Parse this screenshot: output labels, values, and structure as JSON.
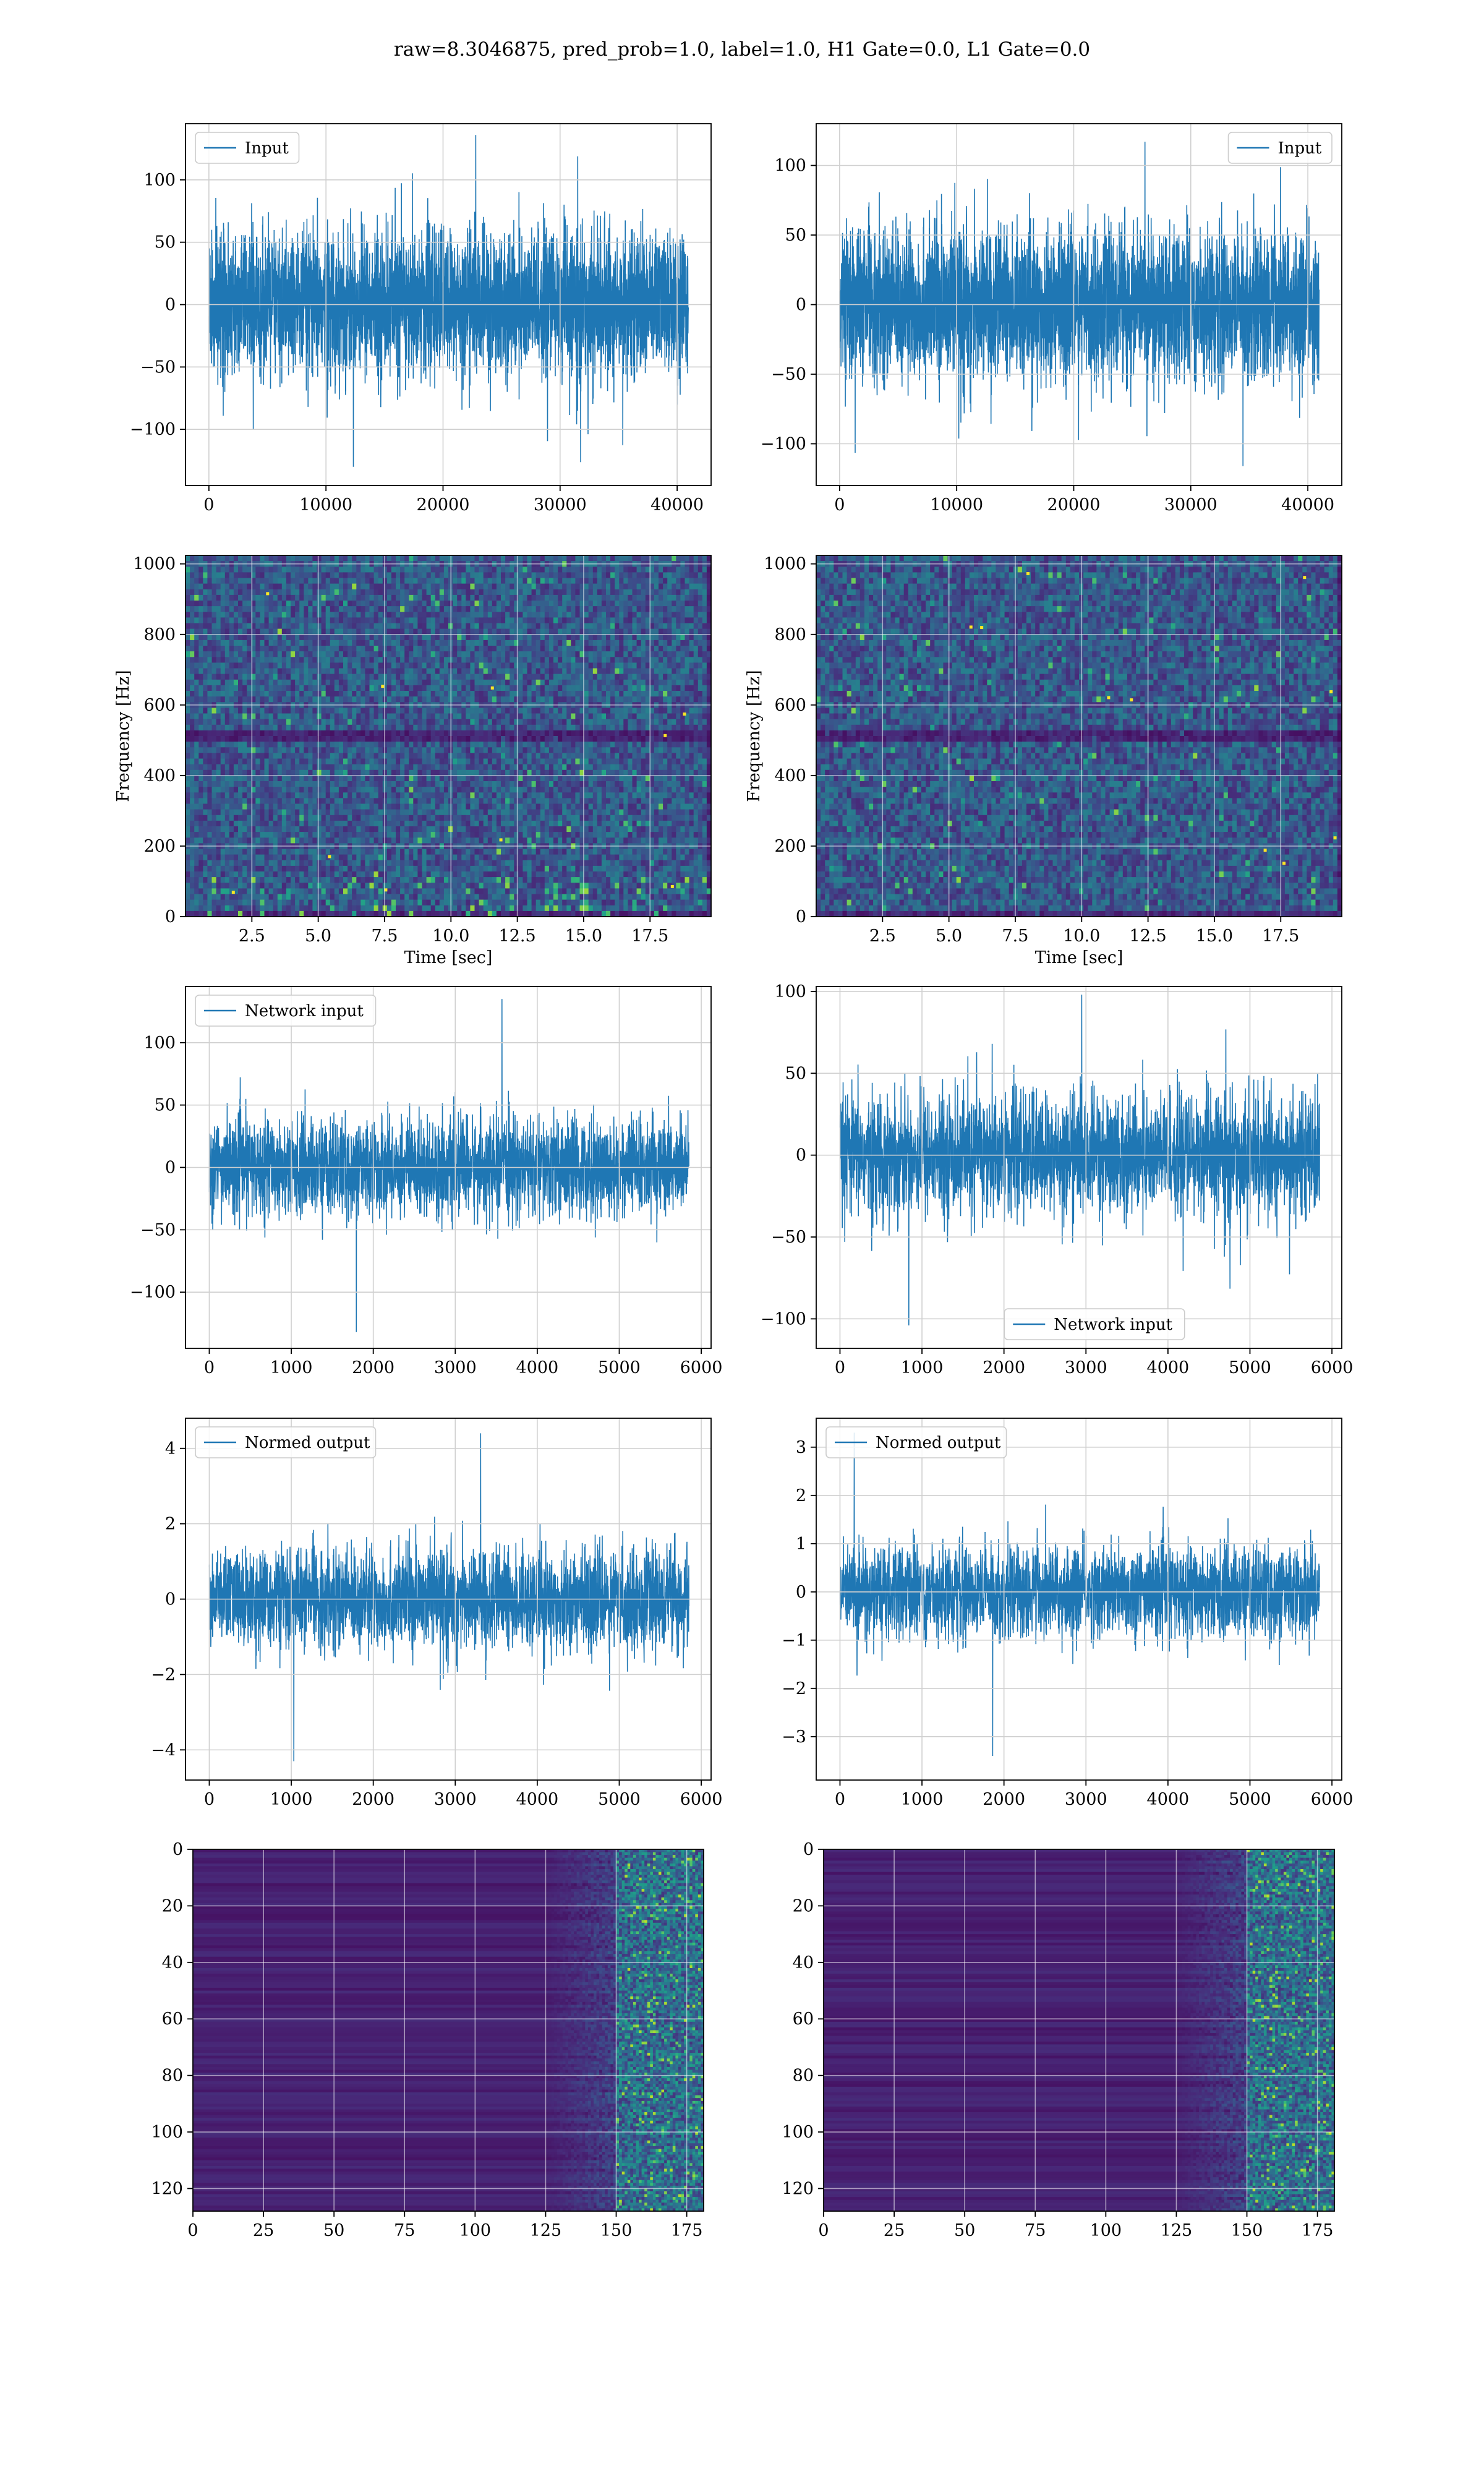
{
  "figure": {
    "title": "raw=8.3046875, pred_prob=1.0, label=1.0, H1 Gate=0.0, L1 Gate=0.0"
  },
  "colors": {
    "series": "#1f77b4",
    "grid": "#d0d0d0",
    "spectrogram_bg": "#440154",
    "viridis": [
      "#440154",
      "#482878",
      "#3e4989",
      "#31688e",
      "#26828e",
      "#1f9e89",
      "#35b779",
      "#6ece58",
      "#b5de2b",
      "#fde725"
    ]
  },
  "chart_data": [
    {
      "id": "input-h1",
      "type": "line",
      "legend": "Input",
      "legend_loc": "upper left",
      "xlim": [
        -2000,
        42900
      ],
      "ylim": [
        -145,
        145
      ],
      "xticks": [
        0,
        10000,
        20000,
        30000,
        40000
      ],
      "yticks": [
        -100,
        -50,
        0,
        50,
        100
      ],
      "x_range": [
        0,
        40960
      ],
      "n_points": 4096,
      "grid": true,
      "envelope": {
        "core": 65,
        "max_peak": 136,
        "min_peak": -130
      },
      "series": [
        {
          "name": "Input"
        }
      ]
    },
    {
      "id": "input-l1",
      "type": "line",
      "legend": "Input",
      "legend_loc": "upper right",
      "xlim": [
        -2000,
        42900
      ],
      "ylim": [
        -130,
        130
      ],
      "xticks": [
        0,
        10000,
        20000,
        30000,
        40000
      ],
      "yticks": [
        -100,
        -50,
        0,
        50,
        100
      ],
      "x_range": [
        0,
        40960
      ],
      "n_points": 4096,
      "grid": true,
      "envelope": {
        "core": 60,
        "max_peak": 117,
        "min_peak": -116
      },
      "series": [
        {
          "name": "Input"
        }
      ]
    },
    {
      "id": "spectrogram-h1",
      "type": "heatmap",
      "xlabel": "Time [sec]",
      "ylabel": "Frequency [Hz]",
      "xlim": [
        0,
        19.8
      ],
      "ylim": [
        0,
        1024
      ],
      "xticks": [
        2.5,
        5.0,
        7.5,
        10.0,
        12.5,
        15.0,
        17.5
      ],
      "yticks": [
        0,
        200,
        400,
        600,
        800,
        1000
      ],
      "grid": true,
      "cols": 120,
      "rows": 64,
      "dark_band_rows": [
        31,
        32
      ],
      "bright_bottom": true
    },
    {
      "id": "spectrogram-l1",
      "type": "heatmap",
      "xlabel": "Time [sec]",
      "ylabel": "Frequency [Hz]",
      "xlim": [
        0,
        19.8
      ],
      "ylim": [
        0,
        1024
      ],
      "xticks": [
        2.5,
        5.0,
        7.5,
        10.0,
        12.5,
        15.0,
        17.5
      ],
      "yticks": [
        0,
        200,
        400,
        600,
        800,
        1000
      ],
      "grid": true,
      "cols": 120,
      "rows": 64,
      "dark_band_rows": [
        31,
        32
      ],
      "bright_bottom": false
    },
    {
      "id": "network-input-h1",
      "type": "line",
      "legend": "Network input",
      "legend_loc": "upper left",
      "xlim": [
        -290,
        6120
      ],
      "ylim": [
        -145,
        145
      ],
      "xticks": [
        0,
        1000,
        2000,
        3000,
        4000,
        5000,
        6000
      ],
      "yticks": [
        -100,
        -50,
        0,
        50,
        100
      ],
      "x_range": [
        0,
        5850
      ],
      "n_points": 2900,
      "grid": true,
      "envelope": {
        "core": 45,
        "max_peak": 135,
        "min_peak": -132
      },
      "series": [
        {
          "name": "Network input"
        }
      ]
    },
    {
      "id": "network-input-l1",
      "type": "line",
      "legend": "Network input",
      "legend_loc": "lower center",
      "xlim": [
        -290,
        6120
      ],
      "ylim": [
        -118,
        103
      ],
      "xticks": [
        0,
        1000,
        2000,
        3000,
        4000,
        5000,
        6000
      ],
      "yticks": [
        -100,
        -50,
        0,
        50,
        100
      ],
      "x_range": [
        0,
        5850
      ],
      "n_points": 2900,
      "grid": true,
      "envelope": {
        "core": 42,
        "max_peak": 98,
        "min_peak": -104
      },
      "series": [
        {
          "name": "Network input"
        }
      ]
    },
    {
      "id": "normed-output-h1",
      "type": "line",
      "legend": "Normed output",
      "legend_loc": "upper left",
      "xlim": [
        -290,
        6120
      ],
      "ylim": [
        -4.8,
        4.8
      ],
      "xticks": [
        0,
        1000,
        2000,
        3000,
        4000,
        5000,
        6000
      ],
      "yticks": [
        -4,
        -2,
        0,
        2,
        4
      ],
      "x_range": [
        0,
        5850
      ],
      "n_points": 2900,
      "grid": true,
      "envelope": {
        "core": 1.5,
        "max_peak": 4.4,
        "min_peak": -4.3
      },
      "series": [
        {
          "name": "Normed output"
        }
      ]
    },
    {
      "id": "normed-output-l1",
      "type": "line",
      "legend": "Normed output",
      "legend_loc": "upper left",
      "xlim": [
        -290,
        6120
      ],
      "ylim": [
        -3.9,
        3.6
      ],
      "xticks": [
        0,
        1000,
        2000,
        3000,
        4000,
        5000,
        6000
      ],
      "yticks": [
        -3,
        -2,
        -1,
        0,
        1,
        2,
        3
      ],
      "x_range": [
        0,
        5850
      ],
      "n_points": 2900,
      "grid": true,
      "envelope": {
        "core": 1.1,
        "max_peak": 3.3,
        "min_peak": -3.4
      },
      "series": [
        {
          "name": "Normed output"
        }
      ]
    },
    {
      "id": "feature-map-h1",
      "type": "heatmap",
      "xlim": [
        0,
        181
      ],
      "ylim": [
        128,
        0
      ],
      "xticks": [
        0,
        25,
        50,
        75,
        100,
        125,
        150,
        175
      ],
      "yticks": [
        0,
        20,
        40,
        60,
        80,
        100,
        120
      ],
      "grid": true,
      "cols": 181,
      "rows": 128,
      "active_cols": [
        150,
        181
      ]
    },
    {
      "id": "feature-map-l1",
      "type": "heatmap",
      "xlim": [
        0,
        181
      ],
      "ylim": [
        128,
        0
      ],
      "xticks": [
        0,
        25,
        50,
        75,
        100,
        125,
        150,
        175
      ],
      "yticks": [
        0,
        20,
        40,
        60,
        80,
        100,
        120
      ],
      "grid": true,
      "cols": 181,
      "rows": 128,
      "active_cols": [
        150,
        181
      ]
    }
  ]
}
